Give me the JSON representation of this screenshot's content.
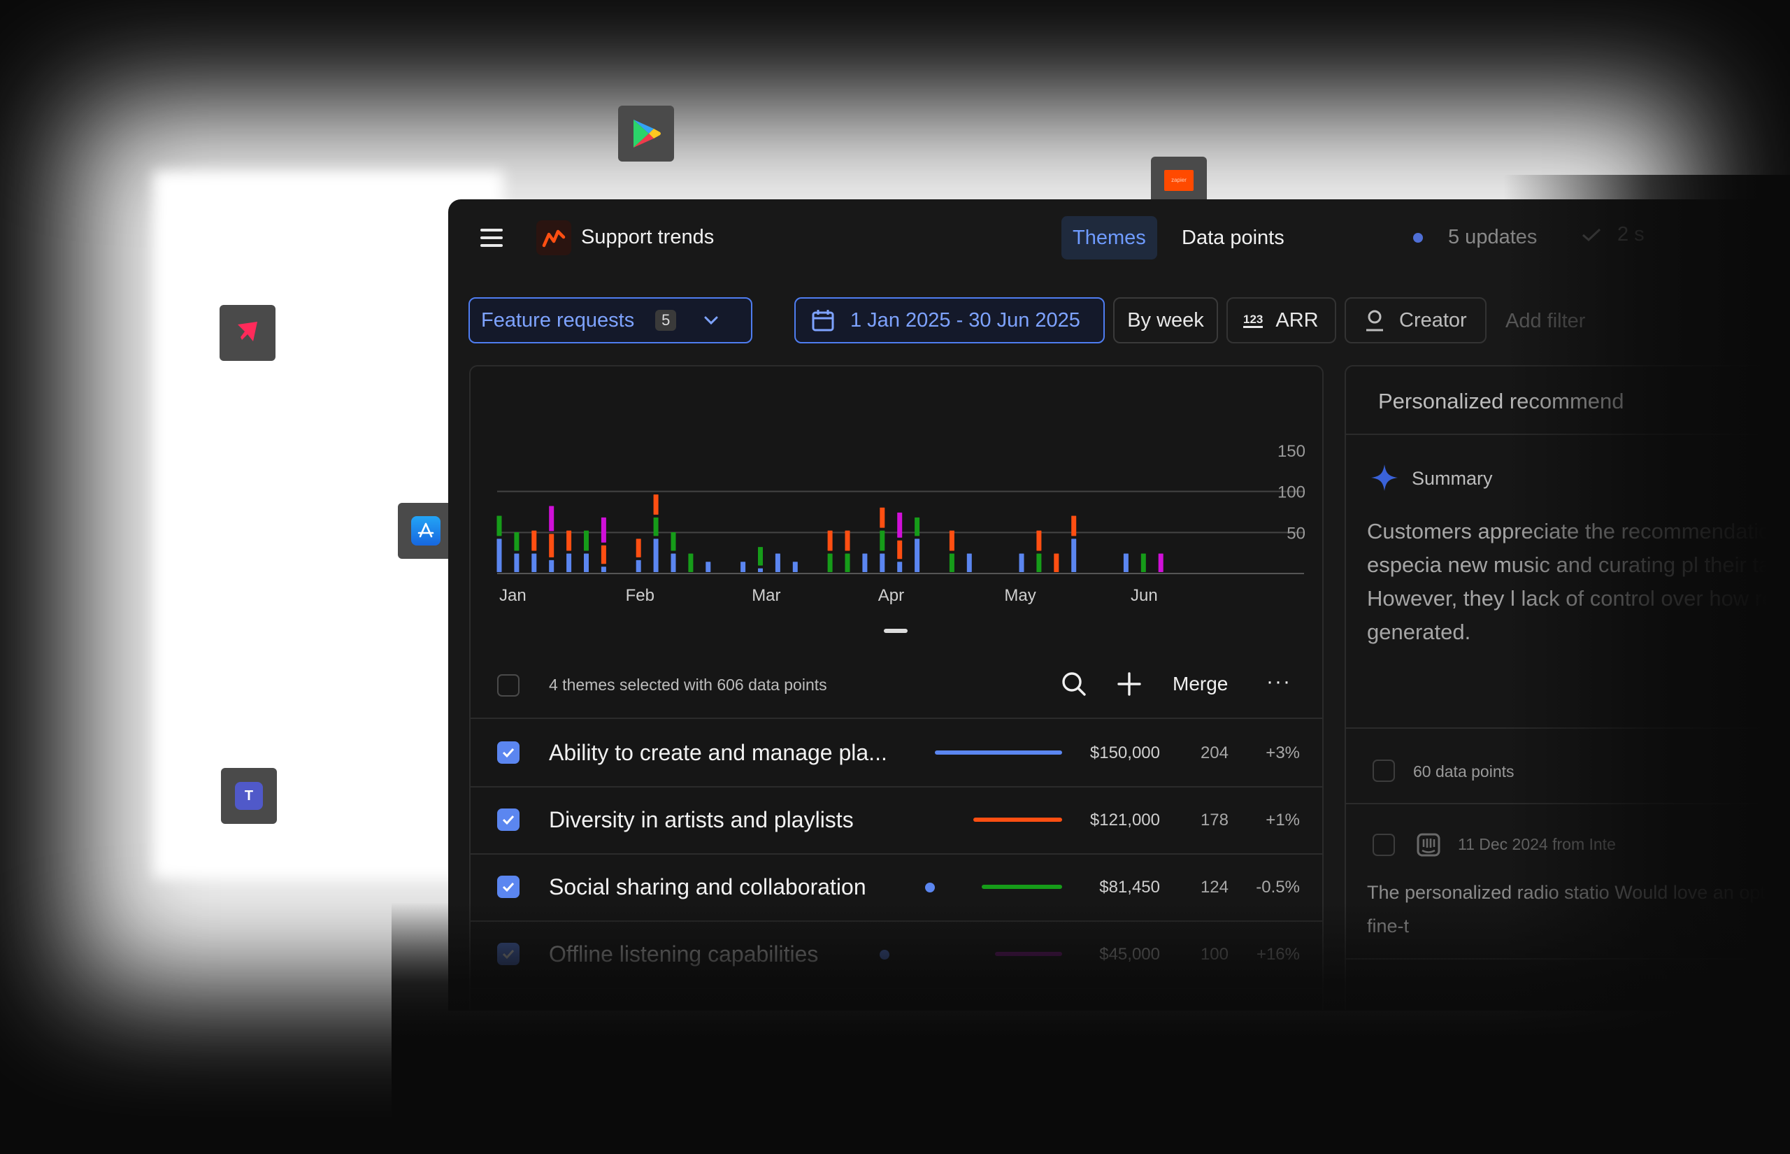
{
  "app": {
    "title": "Support trends",
    "tabs": [
      {
        "label": "Themes",
        "active": true
      },
      {
        "label": "Data points",
        "active": false
      }
    ],
    "updates_label": "5 updates",
    "check_label": "2 s"
  },
  "filters": {
    "category": {
      "label": "Feature requests",
      "count": "5"
    },
    "date_range": "1 Jan 2025 - 30 Jun 2025",
    "granularity": "By week",
    "arr_icon_text": "123",
    "arr_label": "ARR",
    "creator_label": "Creator",
    "add_filter": "Add filter"
  },
  "chart_data": {
    "type": "bar",
    "stacked": true,
    "x_ticks": [
      "Jan",
      "Feb",
      "Mar",
      "Apr",
      "May",
      "Jun"
    ],
    "y_ticks": [
      150,
      100,
      50
    ],
    "ylim": [
      0,
      150
    ],
    "series_colors": {
      "blue": "#5b86f0",
      "orange": "#ff4f12",
      "green": "#169c19",
      "magenta": "#d010d8"
    },
    "weeks": [
      {
        "blue": 44,
        "green": 28
      },
      {
        "blue": 26,
        "green": 26
      },
      {
        "blue": 26,
        "orange": 28
      },
      {
        "blue": 18,
        "orange": 32,
        "magenta": 34
      },
      {
        "blue": 26,
        "orange": 28
      },
      {
        "blue": 26,
        "green": 28
      },
      {
        "blue": 10,
        "orange": 26,
        "magenta": 34
      },
      {},
      {
        "blue": 18,
        "orange": 26
      },
      {
        "blue": 44,
        "green": 26,
        "orange": 28
      },
      {
        "blue": 26,
        "green": 26
      },
      {
        "green": 26
      },
      {
        "blue": 16
      },
      {},
      {
        "blue": 16
      },
      {
        "blue": 8,
        "green": 26
      },
      {
        "blue": 26
      },
      {
        "blue": 16
      },
      {},
      {
        "green": 26,
        "orange": 28
      },
      {
        "green": 26,
        "orange": 28
      },
      {
        "blue": 26
      },
      {
        "blue": 26,
        "green": 28,
        "orange": 28
      },
      {
        "blue": 16,
        "orange": 26,
        "magenta": 34
      },
      {
        "blue": 44,
        "green": 26
      },
      {},
      {
        "green": 26,
        "orange": 28
      },
      {
        "blue": 26
      },
      {},
      {},
      {
        "blue": 26
      },
      {
        "green": 26,
        "orange": 28
      },
      {
        "orange": 26
      },
      {
        "blue": 44,
        "orange": 28
      },
      {},
      {},
      {
        "blue": 26
      },
      {
        "green": 26
      },
      {
        "magenta": 26
      }
    ]
  },
  "selection": {
    "summary": "4 themes selected with 606 data points",
    "merge_label": "Merge",
    "more_label": "···"
  },
  "themes": [
    {
      "name": "Ability to create and manage pla...",
      "amount": "$150,000",
      "count": "204",
      "change": "+3%",
      "color": "#5b86f0",
      "checked": true,
      "dot": false,
      "dim": false,
      "bar_fraction": 1.0
    },
    {
      "name": "Diversity in artists and playlists",
      "amount": "$121,000",
      "count": "178",
      "change": "+1%",
      "color": "#ff4f12",
      "checked": true,
      "dot": false,
      "dim": false,
      "bar_fraction": 0.7
    },
    {
      "name": "Social sharing and collaboration",
      "amount": "$81,450",
      "count": "124",
      "change": "-0.5%",
      "color": "#169c19",
      "checked": true,
      "dot": true,
      "dim": false,
      "bar_fraction": 0.63
    },
    {
      "name": "Offline listening capabilities",
      "amount": "$45,000",
      "count": "100",
      "change": "+16%",
      "color": "#8a1794",
      "checked": true,
      "dot": true,
      "dim": true,
      "bar_fraction": 0.53
    }
  ],
  "panel": {
    "title": "Personalized recommend",
    "summary_label": "Summary",
    "summary_text": "Customers appreciate the recommendations, especia new music and curating pl their taste. However, they l lack of control over how re generated.",
    "data_points": "60 data points",
    "meta": "11 Dec 2024 from Inte",
    "quote": "The personalized radio statio Would love an option to fine-t"
  }
}
